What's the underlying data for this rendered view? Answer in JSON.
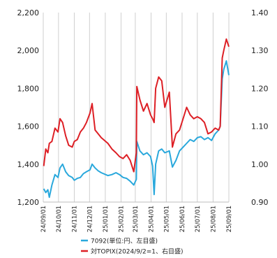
{
  "chart_data": {
    "type": "line",
    "x_ticks": [
      "24/09/01",
      "24/10/01",
      "24/11/01",
      "24/12/01",
      "25/01/01",
      "25/02/01",
      "25/03/01",
      "25/04/01",
      "25/05/01",
      "25/06/01",
      "25/07/01",
      "25/08/01",
      "25/09/01"
    ],
    "left_axis": {
      "ylim": [
        1200,
        2200
      ],
      "ticks": [
        "1,200",
        "1,400",
        "1,600",
        "1,800",
        "2,000",
        "2,200"
      ]
    },
    "right_axis": {
      "ylim": [
        0.9,
        1.4
      ],
      "ticks": [
        "0.90",
        "1.00",
        "1.10",
        "1.20",
        "1.30",
        "1.40"
      ]
    },
    "grid": "vertical",
    "legend_position": "bottom",
    "series": [
      {
        "name": "7092(単位:円、左目盛)",
        "axis": "left",
        "color": "#29a8dc",
        "points": [
          [
            "2024-09-02",
            1270
          ],
          [
            "2024-09-06",
            1250
          ],
          [
            "2024-09-10",
            1265
          ],
          [
            "2024-09-13",
            1225
          ],
          [
            "2024-09-18",
            1290
          ],
          [
            "2024-09-24",
            1345
          ],
          [
            "2024-09-30",
            1330
          ],
          [
            "2024-10-04",
            1380
          ],
          [
            "2024-10-09",
            1400
          ],
          [
            "2024-10-15",
            1360
          ],
          [
            "2024-10-21",
            1340
          ],
          [
            "2024-10-28",
            1330
          ],
          [
            "2024-11-01",
            1315
          ],
          [
            "2024-11-07",
            1325
          ],
          [
            "2024-11-13",
            1330
          ],
          [
            "2024-11-19",
            1350
          ],
          [
            "2024-11-25",
            1360
          ],
          [
            "2024-12-02",
            1370
          ],
          [
            "2024-12-06",
            1400
          ],
          [
            "2024-12-12",
            1380
          ],
          [
            "2024-12-18",
            1365
          ],
          [
            "2024-12-24",
            1355
          ],
          [
            "2025-01-06",
            1340
          ],
          [
            "2025-01-14",
            1345
          ],
          [
            "2025-01-22",
            1355
          ],
          [
            "2025-01-29",
            1345
          ],
          [
            "2025-02-05",
            1330
          ],
          [
            "2025-02-12",
            1325
          ],
          [
            "2025-02-19",
            1310
          ],
          [
            "2025-02-26",
            1290
          ],
          [
            "2025-03-03",
            1320
          ],
          [
            "2025-03-04",
            1520
          ],
          [
            "2025-03-10",
            1470
          ],
          [
            "2025-03-17",
            1450
          ],
          [
            "2025-03-24",
            1460
          ],
          [
            "2025-03-31",
            1440
          ],
          [
            "2025-04-04",
            1390
          ],
          [
            "2025-04-07",
            1240
          ],
          [
            "2025-04-10",
            1400
          ],
          [
            "2025-04-16",
            1470
          ],
          [
            "2025-04-22",
            1480
          ],
          [
            "2025-04-28",
            1460
          ],
          [
            "2025-05-07",
            1470
          ],
          [
            "2025-05-13",
            1385
          ],
          [
            "2025-05-20",
            1420
          ],
          [
            "2025-05-27",
            1470
          ],
          [
            "2025-06-03",
            1490
          ],
          [
            "2025-06-10",
            1510
          ],
          [
            "2025-06-17",
            1530
          ],
          [
            "2025-06-24",
            1520
          ],
          [
            "2025-07-01",
            1540
          ],
          [
            "2025-07-08",
            1545
          ],
          [
            "2025-07-15",
            1530
          ],
          [
            "2025-07-22",
            1540
          ],
          [
            "2025-07-29",
            1525
          ],
          [
            "2025-08-05",
            1560
          ],
          [
            "2025-08-12",
            1580
          ],
          [
            "2025-08-15",
            1600
          ],
          [
            "2025-08-19",
            1850
          ],
          [
            "2025-08-22",
            1900
          ],
          [
            "2025-08-27",
            1945
          ],
          [
            "2025-09-01",
            1870
          ]
        ]
      },
      {
        "name": "対TOPIX(2024/9/2=1、右目盛)",
        "axis": "right",
        "color": "#dd1f25",
        "points": [
          [
            "2024-09-02",
            0.995
          ],
          [
            "2024-09-06",
            1.04
          ],
          [
            "2024-09-10",
            1.03
          ],
          [
            "2024-09-13",
            1.055
          ],
          [
            "2024-09-18",
            1.06
          ],
          [
            "2024-09-24",
            1.095
          ],
          [
            "2024-09-30",
            1.085
          ],
          [
            "2024-10-04",
            1.12
          ],
          [
            "2024-10-09",
            1.11
          ],
          [
            "2024-10-15",
            1.075
          ],
          [
            "2024-10-21",
            1.05
          ],
          [
            "2024-10-28",
            1.045
          ],
          [
            "2024-11-01",
            1.06
          ],
          [
            "2024-11-07",
            1.065
          ],
          [
            "2024-11-13",
            1.085
          ],
          [
            "2024-11-19",
            1.095
          ],
          [
            "2024-11-25",
            1.11
          ],
          [
            "2024-12-02",
            1.135
          ],
          [
            "2024-12-06",
            1.16
          ],
          [
            "2024-12-12",
            1.09
          ],
          [
            "2024-12-18",
            1.08
          ],
          [
            "2024-12-24",
            1.07
          ],
          [
            "2025-01-06",
            1.055
          ],
          [
            "2025-01-14",
            1.04
          ],
          [
            "2025-01-22",
            1.03
          ],
          [
            "2025-01-29",
            1.02
          ],
          [
            "2025-02-05",
            1.015
          ],
          [
            "2025-02-12",
            1.025
          ],
          [
            "2025-02-19",
            1.01
          ],
          [
            "2025-02-26",
            0.98
          ],
          [
            "2025-03-03",
            1.03
          ],
          [
            "2025-03-04",
            1.205
          ],
          [
            "2025-03-10",
            1.17
          ],
          [
            "2025-03-17",
            1.14
          ],
          [
            "2025-03-24",
            1.16
          ],
          [
            "2025-03-31",
            1.13
          ],
          [
            "2025-04-04",
            1.12
          ],
          [
            "2025-04-07",
            1.11
          ],
          [
            "2025-04-10",
            1.2
          ],
          [
            "2025-04-16",
            1.23
          ],
          [
            "2025-04-22",
            1.22
          ],
          [
            "2025-04-28",
            1.15
          ],
          [
            "2025-05-07",
            1.19
          ],
          [
            "2025-05-13",
            1.045
          ],
          [
            "2025-05-20",
            1.08
          ],
          [
            "2025-05-27",
            1.09
          ],
          [
            "2025-06-03",
            1.12
          ],
          [
            "2025-06-10",
            1.15
          ],
          [
            "2025-06-17",
            1.13
          ],
          [
            "2025-06-24",
            1.12
          ],
          [
            "2025-07-01",
            1.125
          ],
          [
            "2025-07-08",
            1.12
          ],
          [
            "2025-07-15",
            1.11
          ],
          [
            "2025-07-22",
            1.08
          ],
          [
            "2025-07-29",
            1.085
          ],
          [
            "2025-08-05",
            1.095
          ],
          [
            "2025-08-12",
            1.09
          ],
          [
            "2025-08-15",
            1.1
          ],
          [
            "2025-08-19",
            1.28
          ],
          [
            "2025-08-22",
            1.3
          ],
          [
            "2025-08-27",
            1.33
          ],
          [
            "2025-09-01",
            1.31
          ]
        ]
      }
    ]
  }
}
